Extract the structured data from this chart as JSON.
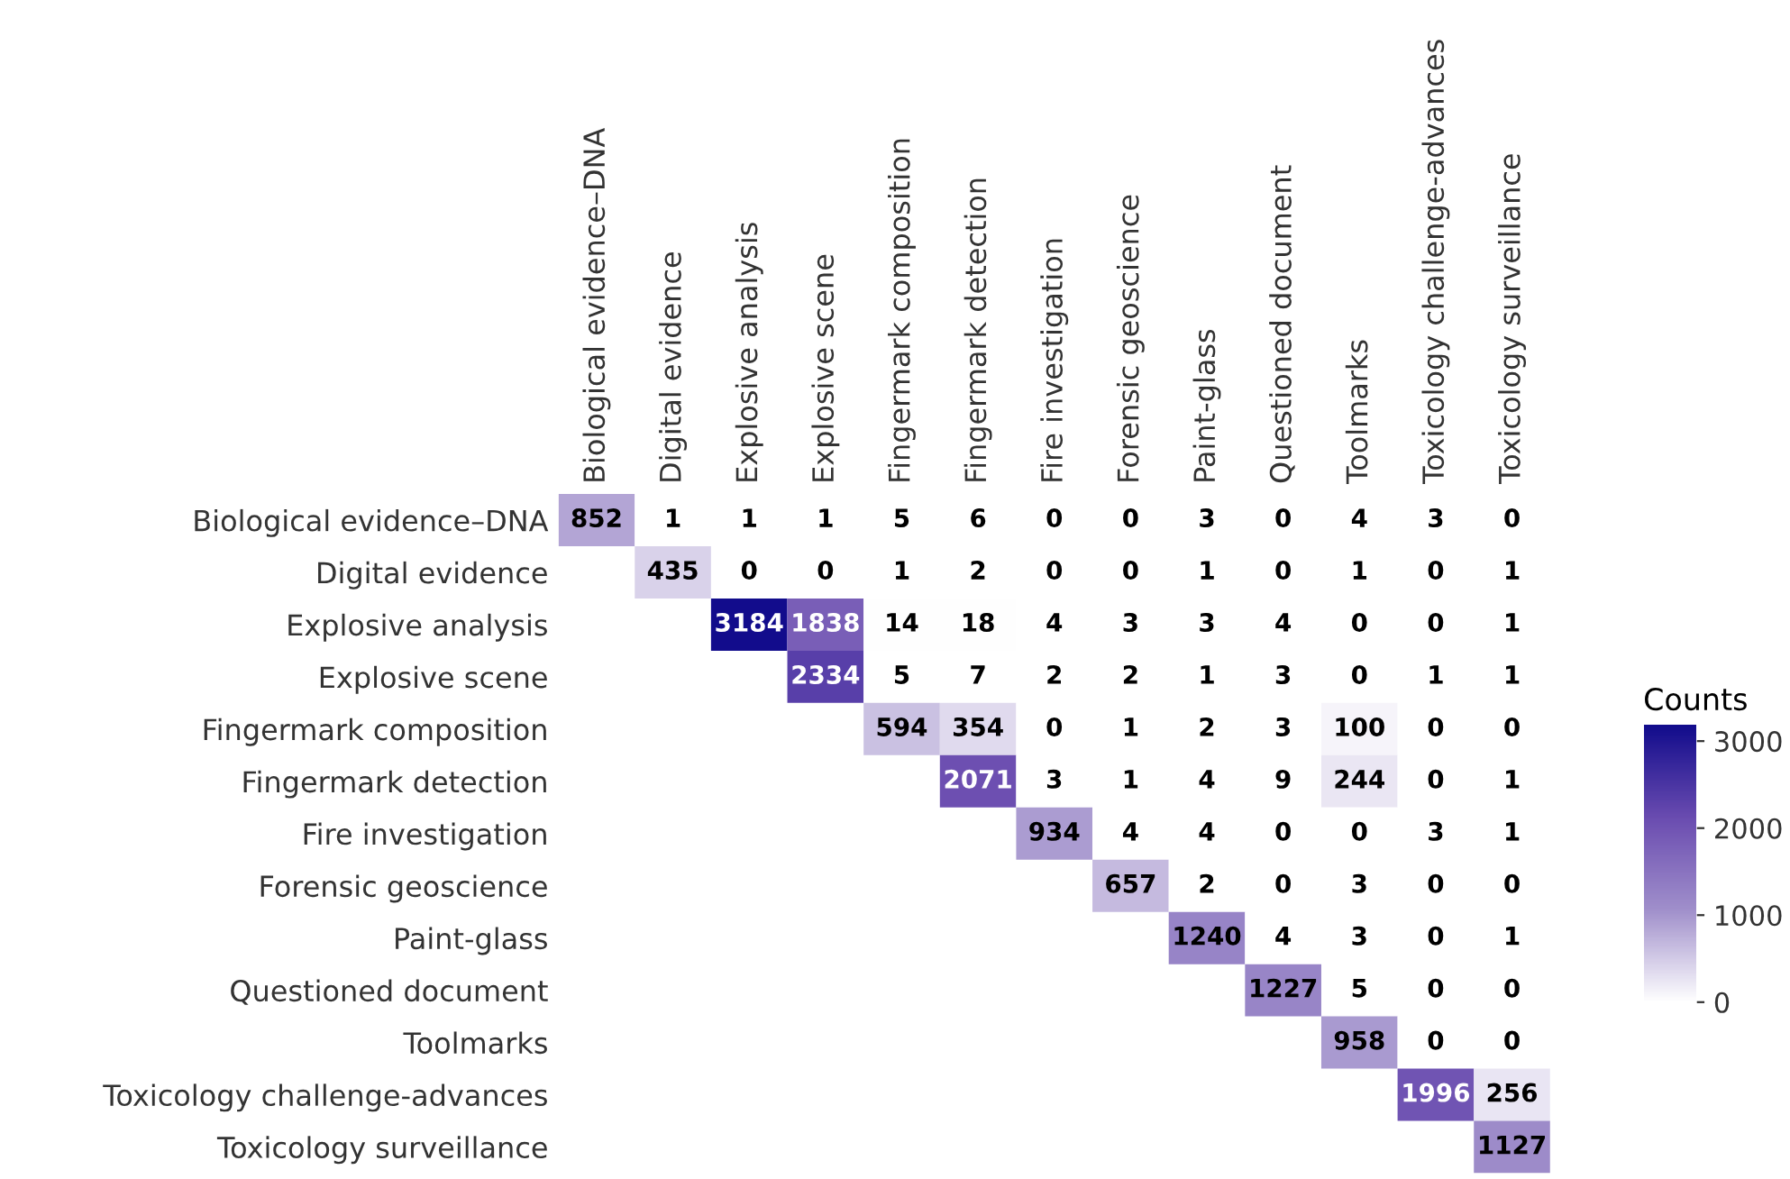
{
  "chart_data": {
    "type": "heatmap",
    "clabel": "Counts",
    "data_labels": true,
    "categories": [
      "Biological evidence–DNA",
      "Digital evidence",
      "Explosive analysis",
      "Explosive scene",
      "Fingermark composition",
      "Fingermark detection",
      "Fire investigation",
      "Forensic geoscience",
      "Paint-glass",
      "Questioned document",
      "Toolmarks",
      "Toxicology challenge-advances",
      "Toxicology surveillance"
    ],
    "y_categories": [
      "Biological evidence–DNA",
      "Digital evidence",
      "Explosive analysis",
      "Explosive scene",
      "Fingermark composition",
      "Fingermark detection",
      "Fire investigation",
      "Forensic geoscience",
      "Paint-glass",
      "Questioned document",
      "Toolmarks",
      "Toxicology challenge-advances",
      "Toxicology surveillance"
    ],
    "cells": [
      [
        852,
        1,
        1,
        1,
        5,
        6,
        0,
        0,
        3,
        0,
        4,
        3,
        0
      ],
      [
        null,
        435,
        0,
        0,
        1,
        2,
        0,
        0,
        1,
        0,
        1,
        0,
        1
      ],
      [
        null,
        null,
        3184,
        1838,
        14,
        18,
        4,
        3,
        3,
        4,
        0,
        0,
        1
      ],
      [
        null,
        null,
        null,
        2334,
        5,
        7,
        2,
        2,
        1,
        3,
        0,
        1,
        1
      ],
      [
        null,
        null,
        null,
        null,
        594,
        354,
        0,
        1,
        2,
        3,
        100,
        0,
        0
      ],
      [
        null,
        null,
        null,
        null,
        null,
        2071,
        3,
        1,
        4,
        9,
        244,
        0,
        1
      ],
      [
        null,
        null,
        null,
        null,
        null,
        null,
        934,
        4,
        4,
        0,
        0,
        3,
        1
      ],
      [
        null,
        null,
        null,
        null,
        null,
        null,
        null,
        657,
        2,
        0,
        3,
        0,
        0
      ],
      [
        null,
        null,
        null,
        null,
        null,
        null,
        null,
        null,
        1240,
        4,
        3,
        0,
        1
      ],
      [
        null,
        null,
        null,
        null,
        null,
        null,
        null,
        null,
        null,
        1227,
        5,
        0,
        0
      ],
      [
        null,
        null,
        null,
        null,
        null,
        null,
        null,
        null,
        null,
        null,
        958,
        0,
        0
      ],
      [
        null,
        null,
        null,
        null,
        null,
        null,
        null,
        null,
        null,
        null,
        null,
        1996,
        256
      ],
      [
        null,
        null,
        null,
        null,
        null,
        null,
        null,
        null,
        null,
        null,
        null,
        null,
        1127
      ]
    ],
    "clim": [
      0,
      3184
    ],
    "cticks": [
      0,
      1000,
      2000,
      3000
    ]
  }
}
